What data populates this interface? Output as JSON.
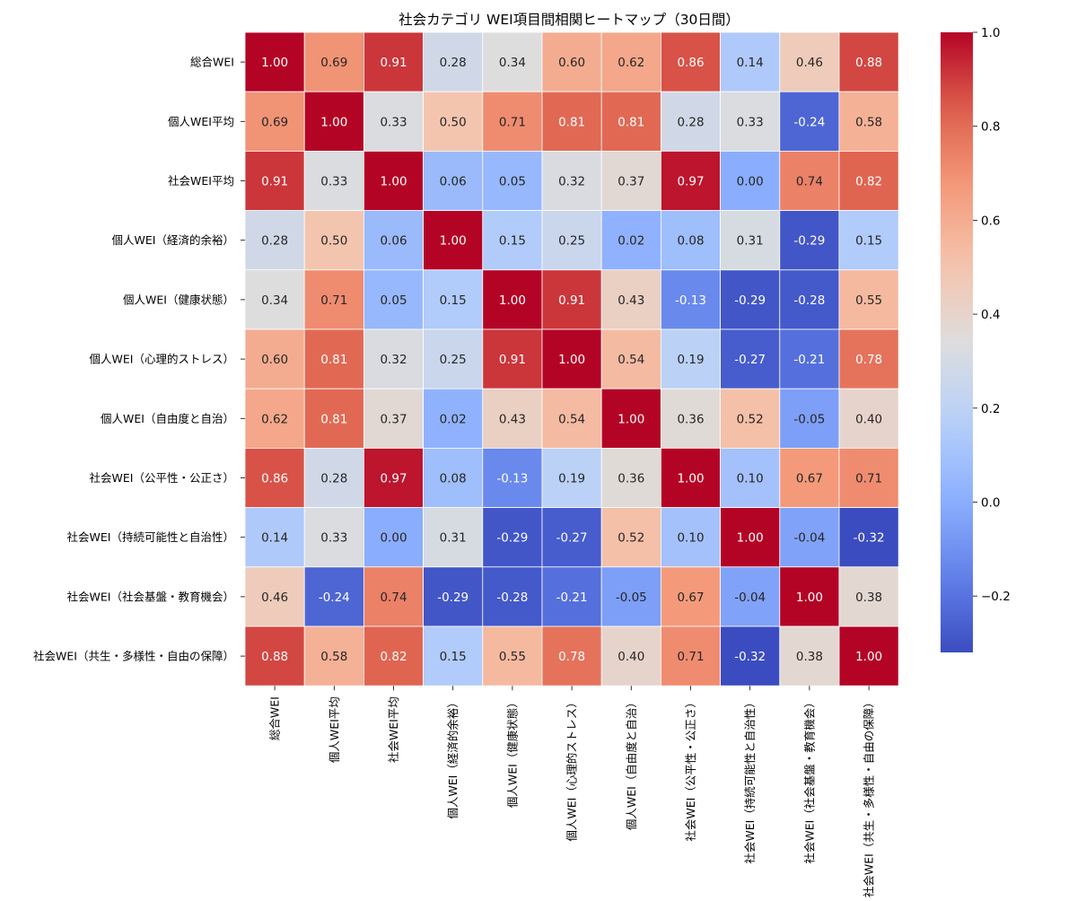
{
  "chart_data": {
    "type": "heatmap",
    "title": "社会カテゴリ WEI項目間相関ヒートマップ（30日間）",
    "labels": [
      "総合WEI",
      "個人WEI平均",
      "社会WEI平均",
      "個人WEI（経済的余裕）",
      "個人WEI（健康状態）",
      "個人WEI（心理的ストレス）",
      "個人WEI（自由度と自治）",
      "社会WEI（公平性・公正さ）",
      "社会WEI（持続可能性と自治性）",
      "社会WEI（社会基盤・教育機会）",
      "社会WEI（共生・多様性・自由の保障）"
    ],
    "values": [
      [
        1.0,
        0.69,
        0.91,
        0.28,
        0.34,
        0.6,
        0.62,
        0.86,
        0.14,
        0.46,
        0.88
      ],
      [
        0.69,
        1.0,
        0.33,
        0.5,
        0.71,
        0.81,
        0.81,
        0.28,
        0.33,
        -0.24,
        0.58
      ],
      [
        0.91,
        0.33,
        1.0,
        0.06,
        0.05,
        0.32,
        0.37,
        0.97,
        0.0,
        0.74,
        0.82
      ],
      [
        0.28,
        0.5,
        0.06,
        1.0,
        0.15,
        0.25,
        0.02,
        0.08,
        0.31,
        -0.29,
        0.15
      ],
      [
        0.34,
        0.71,
        0.05,
        0.15,
        1.0,
        0.91,
        0.43,
        -0.13,
        -0.29,
        -0.28,
        0.55
      ],
      [
        0.6,
        0.81,
        0.32,
        0.25,
        0.91,
        1.0,
        0.54,
        0.19,
        -0.27,
        -0.21,
        0.78
      ],
      [
        0.62,
        0.81,
        0.37,
        0.02,
        0.43,
        0.54,
        1.0,
        0.36,
        0.52,
        -0.05,
        0.4
      ],
      [
        0.86,
        0.28,
        0.97,
        0.08,
        -0.13,
        0.19,
        0.36,
        1.0,
        0.1,
        0.67,
        0.71
      ],
      [
        0.14,
        0.33,
        0.0,
        0.31,
        -0.29,
        -0.27,
        0.52,
        0.1,
        1.0,
        -0.04,
        -0.32
      ],
      [
        0.46,
        -0.24,
        0.74,
        -0.29,
        -0.28,
        -0.21,
        -0.05,
        0.67,
        -0.04,
        1.0,
        0.38
      ],
      [
        0.88,
        0.58,
        0.82,
        0.15,
        0.55,
        0.78,
        0.4,
        0.71,
        -0.32,
        0.38,
        1.0
      ]
    ],
    "colormap": "coolwarm",
    "vmin": -0.32,
    "vmax": 1.0,
    "colorbar_ticks": [
      "1.0",
      "0.8",
      "0.6",
      "0.4",
      "0.2",
      "0.0",
      "−0.2"
    ],
    "colorbar_tick_values": [
      1.0,
      0.8,
      0.6,
      0.4,
      0.2,
      0.0,
      -0.2
    ],
    "annotation_format": "2 decimals",
    "grid_lines": "white"
  }
}
